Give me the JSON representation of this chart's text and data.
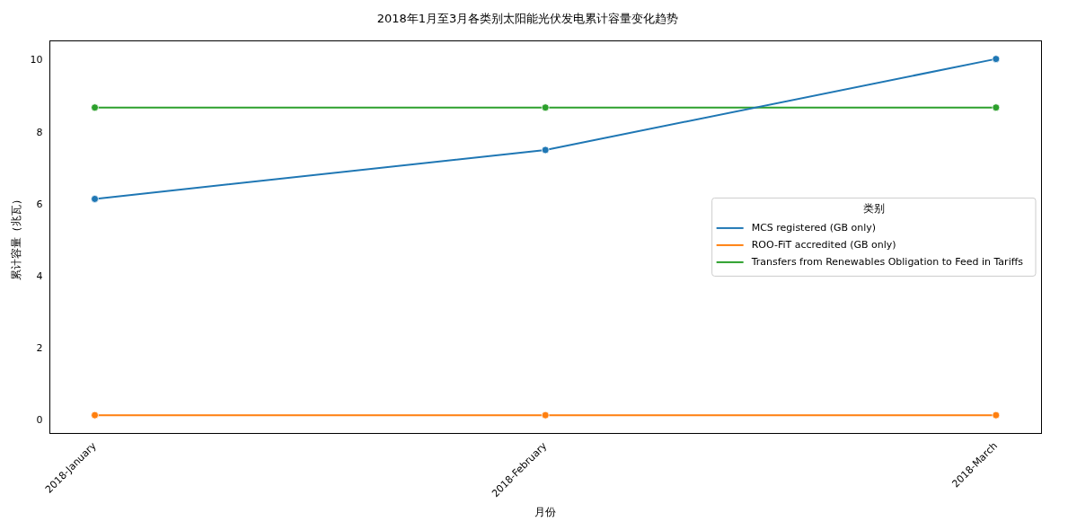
{
  "chart_data": {
    "type": "line",
    "title": "2018年1月至3月各类别太阳能光伏发电累计容量变化趋势",
    "xlabel": "月份",
    "ylabel": "累计容量（兆瓦）",
    "legend_title": "类别",
    "categories": [
      "2018-January",
      "2018-February",
      "2018-March"
    ],
    "series": [
      {
        "name": "MCS registered (GB only)",
        "color": "#1f77b4",
        "values": [
          6.16,
          7.52,
          10.05
        ]
      },
      {
        "name": "ROO-FiT accredited (GB only)",
        "color": "#ff7f0e",
        "values": [
          0.15,
          0.15,
          0.15
        ]
      },
      {
        "name": "Transfers from Renewables Obligation to Feed in Tariffs",
        "color": "#2ca02c",
        "values": [
          8.7,
          8.7,
          8.7
        ]
      }
    ],
    "ylim": [
      -0.35,
      10.55
    ],
    "yticks": [
      0,
      2,
      4,
      6,
      8,
      10
    ],
    "grid": false,
    "legend": "center right",
    "marker": "circle",
    "line_style": "solid"
  }
}
